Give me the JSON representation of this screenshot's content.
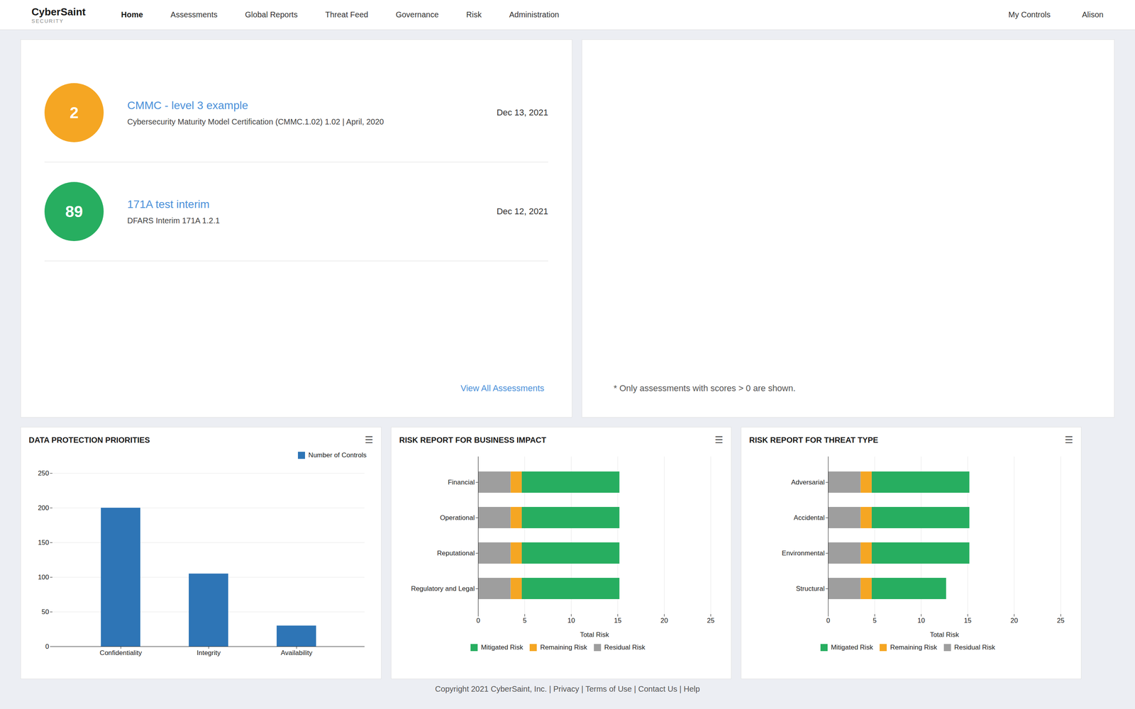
{
  "header": {
    "brand": "CyberSaint",
    "brand_sub": "SECURITY",
    "nav_items": [
      "Home",
      "Assessments",
      "Global Reports",
      "Threat Feed",
      "Governance",
      "Risk",
      "Administration"
    ],
    "nav_active": "Home",
    "nav_right": [
      "My Controls",
      "Alison"
    ]
  },
  "assessments": [
    {
      "score": 2,
      "color": "#f5a623",
      "title": "CMMC - level 3 example",
      "desc": "Cybersecurity Maturity Model Certification (CMMC.1.02) 1.02 | April, 2020",
      "date": "Dec 13, 2021"
    },
    {
      "score": 89,
      "color": "#27ae60",
      "title": "171A test interim",
      "desc": "DFARS Interim 171A 1.2.1",
      "date": "Dec 12, 2021"
    }
  ],
  "view_all": "View All Assessments",
  "note": "* Only assessments with scores > 0 are shown.",
  "menu_icon": "☰",
  "footer": "Copyright 2021 CyberSaint, Inc. | Privacy | Terms of Use | Contact Us | Help",
  "chart_data": [
    {
      "type": "bar",
      "title": "DATA PROTECTION PRIORITIES",
      "categories": [
        "Confidentiality",
        "Integrity",
        "Availability"
      ],
      "series": [
        {
          "name": "Number of Controls",
          "color": "#2e75b6",
          "values": [
            200,
            105,
            30
          ]
        }
      ],
      "ylim": [
        0,
        250
      ],
      "yticks": [
        0,
        50,
        100,
        150,
        200,
        250
      ],
      "grid": true,
      "legend": "upper right"
    },
    {
      "type": "bar",
      "title": "RISK REPORT FOR BUSINESS IMPACT",
      "orientation": "horizontal",
      "stacked": true,
      "categories": [
        "Financial",
        "Operational",
        "Reputational",
        "Regulatory and Legal"
      ],
      "series": [
        {
          "name": "Mitigated Risk",
          "color": "#27ae60",
          "values": [
            10.5,
            10.5,
            10.5,
            10.5
          ]
        },
        {
          "name": "Remaining Risk",
          "color": "#f5a623",
          "values": [
            1.2,
            1.2,
            1.2,
            1.2
          ]
        },
        {
          "name": "Residual Risk",
          "color": "#9e9e9e",
          "values": [
            3.5,
            3.5,
            3.5,
            3.5
          ]
        }
      ],
      "xlim": [
        0,
        25
      ],
      "xticks": [
        0,
        5,
        10,
        15,
        20,
        25
      ],
      "xlabel": "Total Risk",
      "grid": true,
      "legend": "lower center"
    },
    {
      "type": "bar",
      "title": "RISK REPORT FOR THREAT TYPE",
      "orientation": "horizontal",
      "stacked": true,
      "categories": [
        "Adversarial",
        "Accidental",
        "Environmental",
        "Structural"
      ],
      "series": [
        {
          "name": "Mitigated Risk",
          "color": "#27ae60",
          "values": [
            10.5,
            10.5,
            10.5,
            8.0
          ]
        },
        {
          "name": "Remaining Risk",
          "color": "#f5a623",
          "values": [
            1.2,
            1.2,
            1.2,
            1.2
          ]
        },
        {
          "name": "Residual Risk",
          "color": "#9e9e9e",
          "values": [
            3.5,
            3.5,
            3.5,
            3.5
          ]
        }
      ],
      "xlim": [
        0,
        25
      ],
      "xticks": [
        0,
        5,
        10,
        15,
        20,
        25
      ],
      "xlabel": "Total Risk",
      "grid": true,
      "legend": "lower center"
    }
  ]
}
